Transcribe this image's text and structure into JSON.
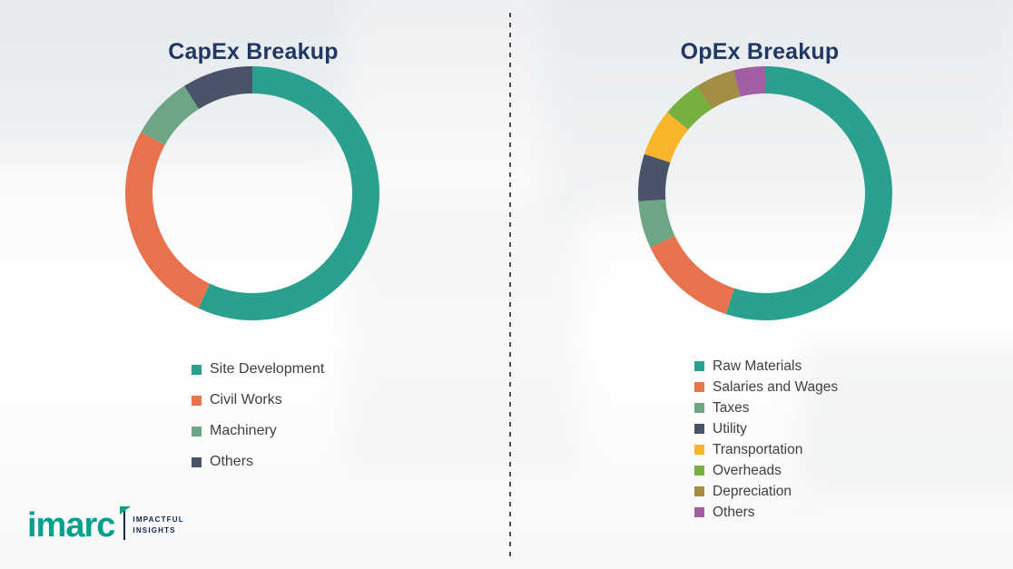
{
  "chart_data": [
    {
      "type": "pie",
      "subtype": "donut",
      "title": "CapEx Breakup",
      "legend_position": "bottom-left",
      "categories": [
        "Site Development",
        "Civil Works",
        "Machinery",
        "Others"
      ],
      "values": [
        57,
        26,
        8,
        9
      ],
      "colors": [
        "#2AA18E",
        "#E8714E",
        "#6DA685",
        "#4B5368"
      ]
    },
    {
      "type": "pie",
      "subtype": "donut",
      "title": "OpEx Breakup",
      "legend_position": "bottom-left",
      "categories": [
        "Raw Materials",
        "Salaries and Wages",
        "Taxes",
        "Utility",
        "Transportation",
        "Overheads",
        "Depreciation",
        "Others"
      ],
      "values": [
        55,
        13,
        6,
        6,
        6,
        5,
        5,
        4
      ],
      "colors": [
        "#2AA18E",
        "#E8714E",
        "#6DA685",
        "#4B5368",
        "#F7B52C",
        "#76B13F",
        "#A18E44",
        "#A05EA5"
      ]
    }
  ],
  "branding": {
    "brand": "imarc",
    "tagline_line1": "IMPACTFUL",
    "tagline_line2": "INSIGHTS",
    "brand_color": "#00A08C"
  },
  "style": {
    "title_color": "#1F3864",
    "legend_text_color": "#404040"
  }
}
